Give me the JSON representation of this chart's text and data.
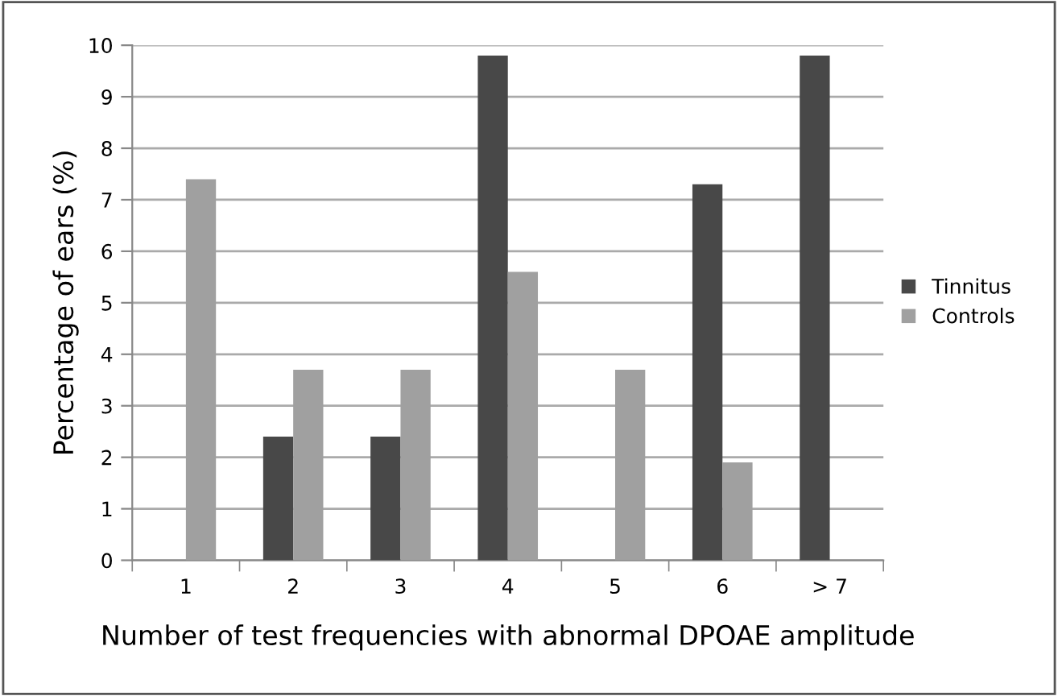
{
  "chart_data": {
    "type": "bar",
    "xlabel": "Number of test frequencies with abnormal DPOAE amplitude",
    "ylabel": "Percentage of ears (%)",
    "categories": [
      "1",
      "2",
      "3",
      "4",
      "5",
      "6",
      "> 7"
    ],
    "series": [
      {
        "name": "Tinnitus",
        "color": "#484848",
        "values": [
          0,
          2.4,
          2.4,
          9.8,
          0,
          7.3,
          9.8
        ]
      },
      {
        "name": "Controls",
        "color": "#a0a0a0",
        "values": [
          7.4,
          3.7,
          3.7,
          5.6,
          3.7,
          1.9,
          0
        ]
      }
    ],
    "ylim": [
      0,
      10
    ],
    "yticks": [
      0,
      1,
      2,
      3,
      4,
      5,
      6,
      7,
      8,
      9,
      10
    ],
    "grid": "y",
    "legend": "right"
  }
}
